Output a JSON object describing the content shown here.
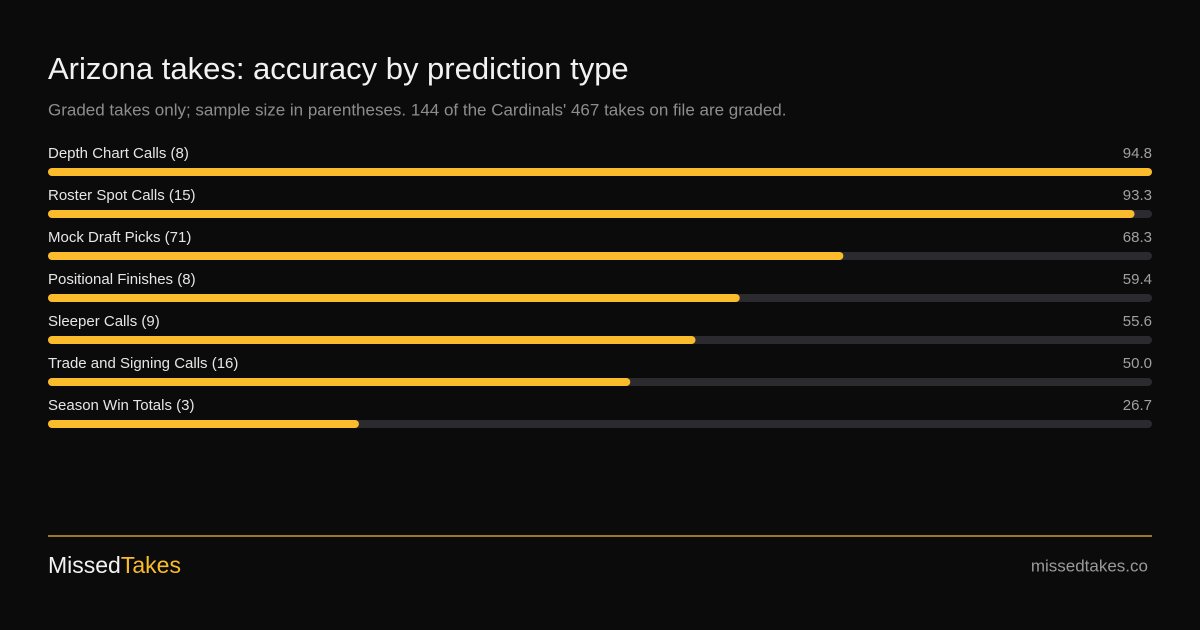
{
  "chart_data": {
    "type": "bar",
    "orientation": "horizontal",
    "title": "Arizona takes: accuracy by prediction type",
    "subtitle": "Graded takes only; sample size in parentheses. 144 of the Cardinals' 467 takes on file are graded.",
    "categories": [
      "Depth Chart Calls (8)",
      "Roster Spot Calls (15)",
      "Mock Draft Picks (71)",
      "Positional Finishes (8)",
      "Sleeper Calls (9)",
      "Trade and Signing Calls (16)",
      "Season Win Totals (3)"
    ],
    "values": [
      94.8,
      93.3,
      68.3,
      59.4,
      55.6,
      50,
      26.7
    ],
    "value_labels": [
      "94.8",
      "93.3",
      "68.3",
      "59.4",
      "55.6",
      "50.0",
      "26.7"
    ],
    "xlim": [
      0,
      94.8
    ],
    "color": "#fbbc2c",
    "track_color": "#2b2a2f"
  },
  "footer": {
    "brand_first": "Missed",
    "brand_second": "Takes",
    "url": "missedtakes.co"
  }
}
